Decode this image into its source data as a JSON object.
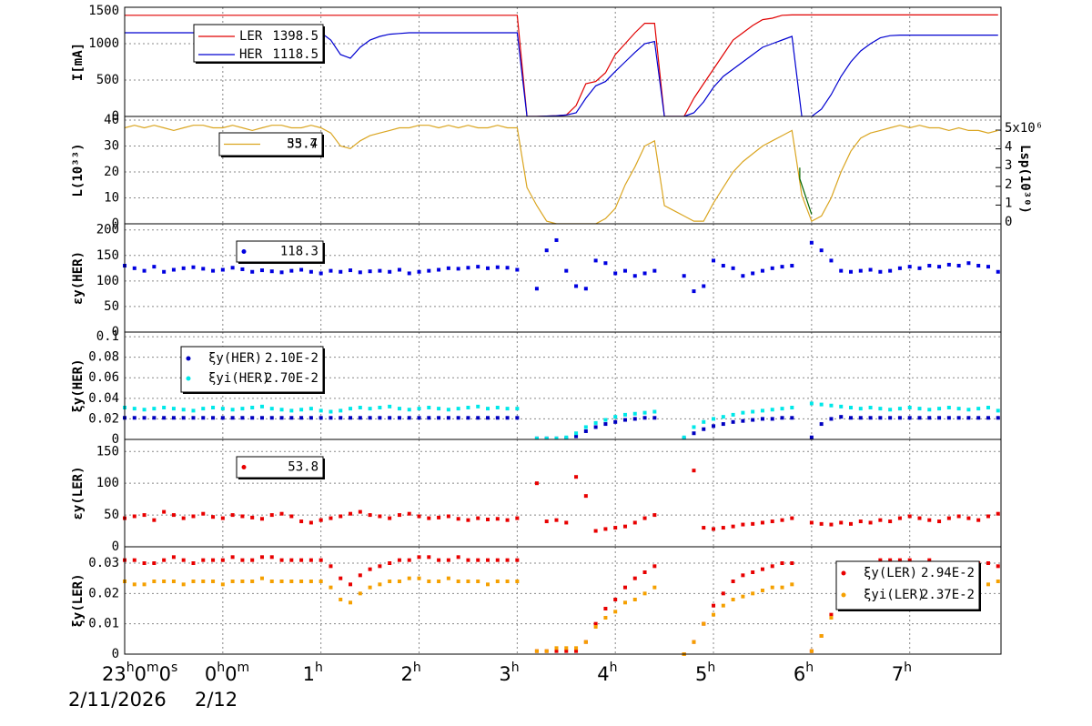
{
  "x_axis": {
    "xlim": [
      -1,
      7.93
    ],
    "xticks": [
      {
        "value": -1,
        "label": "23h0m0s"
      },
      {
        "value": 0,
        "label": "0h0m"
      },
      {
        "value": 1,
        "label": "1h"
      },
      {
        "value": 2,
        "label": "2h"
      },
      {
        "value": 3,
        "label": "3h"
      },
      {
        "value": 4,
        "label": "4h"
      },
      {
        "value": 5,
        "label": "5h"
      },
      {
        "value": 6,
        "label": "6h"
      },
      {
        "value": 7,
        "label": "7h"
      }
    ],
    "dates": [
      "2/11/2026",
      "2/12"
    ],
    "x": [
      -1,
      -0.9,
      -0.8,
      -0.7,
      -0.6,
      -0.5,
      -0.4,
      -0.3,
      -0.2,
      -0.1,
      0,
      0.1,
      0.2,
      0.3,
      0.4,
      0.5,
      0.6,
      0.7,
      0.8,
      0.9,
      1,
      1.1,
      1.2,
      1.3,
      1.4,
      1.5,
      1.6,
      1.7,
      1.8,
      1.9,
      2,
      2.1,
      2.2,
      2.3,
      2.4,
      2.5,
      2.6,
      2.7,
      2.8,
      2.9,
      3,
      3.1,
      3.2,
      3.3,
      3.4,
      3.5,
      3.6,
      3.7,
      3.8,
      3.9,
      4,
      4.1,
      4.2,
      4.3,
      4.4,
      4.5,
      4.6,
      4.7,
      4.8,
      4.9,
      5,
      5.1,
      5.2,
      5.3,
      5.4,
      5.5,
      5.6,
      5.7,
      5.8,
      5.9,
      6,
      6.1,
      6.2,
      6.3,
      6.4,
      6.5,
      6.6,
      6.7,
      6.8,
      6.9,
      7,
      7.1,
      7.2,
      7.3,
      7.4,
      7.5,
      7.6,
      7.7,
      7.8,
      7.9
    ]
  },
  "chart_data": [
    {
      "type": "line",
      "ylabel": "I[mA]",
      "ylim": [
        0,
        1500
      ],
      "yticks": [
        0,
        500,
        1000,
        1500
      ],
      "grid": true,
      "series": [
        {
          "name": "LER",
          "color": "#e00000",
          "legend_value": 1398.5,
          "values": [
            1390,
            1390,
            1390,
            1390,
            1390,
            1390,
            1390,
            1390,
            1390,
            1390,
            1390,
            1390,
            1390,
            1390,
            1390,
            1390,
            1390,
            1390,
            1390,
            1390,
            1390,
            1390,
            1390,
            1390,
            1390,
            1390,
            1390,
            1390,
            1390,
            1390,
            1390,
            1390,
            1390,
            1390,
            1390,
            1390,
            1390,
            1390,
            1390,
            1390,
            1390,
            0,
            0,
            5,
            10,
            20,
            150,
            450,
            480,
            600,
            850,
            1000,
            1150,
            1280,
            1280,
            0,
            0,
            0,
            250,
            450,
            650,
            850,
            1050,
            1150,
            1250,
            1330,
            1350,
            1390,
            1395,
            1395,
            1395,
            1395,
            1395,
            1395,
            1395,
            1395,
            1395,
            1395,
            1395,
            1395,
            1395,
            1395,
            1395,
            1395,
            1395,
            1395,
            1395,
            1395,
            1395,
            1395
          ]
        },
        {
          "name": "HER",
          "color": "#0000d0",
          "legend_value": 1118.5,
          "values": [
            1150,
            1150,
            1150,
            1150,
            1150,
            1150,
            1150,
            1150,
            1150,
            1150,
            1150,
            1150,
            1150,
            1150,
            1150,
            1150,
            1150,
            1150,
            1150,
            1150,
            1150,
            1050,
            850,
            800,
            950,
            1050,
            1100,
            1130,
            1140,
            1150,
            1150,
            1150,
            1150,
            1150,
            1150,
            1150,
            1150,
            1150,
            1150,
            1150,
            1150,
            0,
            0,
            5,
            10,
            20,
            50,
            250,
            420,
            480,
            620,
            750,
            880,
            1000,
            1030,
            0,
            0,
            0,
            50,
            200,
            400,
            550,
            650,
            750,
            850,
            950,
            1000,
            1050,
            1100,
            0,
            0,
            100,
            300,
            550,
            750,
            900,
            1000,
            1080,
            1110,
            1118,
            1118,
            1118,
            1118,
            1118,
            1118,
            1118,
            1118,
            1118,
            1118,
            1118,
            1118
          ]
        }
      ]
    },
    {
      "type": "line",
      "ylabel": "L(10³³)",
      "y2label": "Lsp(10³⁰)",
      "ylim": [
        0,
        41.4
      ],
      "yticks": [
        0,
        10,
        20,
        30,
        40
      ],
      "y2lim": [
        0,
        5730000
      ],
      "y2ticks": [
        0,
        {
          "value": 1000000,
          "label": "1"
        },
        {
          "value": 2000000,
          "label": "2"
        },
        {
          "value": 3000000,
          "label": "3"
        },
        {
          "value": 4000000,
          "label": "4"
        },
        {
          "value": 5000000,
          "label": "5x10⁶"
        }
      ],
      "grid": true,
      "series": [
        {
          "color": "#daa520",
          "legend_value": 33.4,
          "values": [
            37,
            38,
            37,
            38,
            37,
            36,
            37,
            38,
            38,
            37,
            37,
            38,
            37,
            36,
            37,
            38,
            38,
            37,
            37,
            38,
            37,
            35,
            30,
            29,
            32,
            34,
            35,
            36,
            37,
            37,
            38,
            38,
            37,
            38,
            37,
            38,
            37,
            37,
            38,
            37,
            37,
            14,
            7,
            1,
            0,
            0,
            0,
            0,
            0,
            2,
            6,
            15,
            22,
            30,
            32,
            7,
            5,
            3,
            1,
            1,
            8,
            14,
            20,
            24,
            27,
            30,
            32,
            34,
            36,
            11,
            1,
            3,
            10,
            20,
            28,
            33,
            35,
            36,
            37,
            38,
            37,
            38,
            37,
            37,
            36,
            37,
            36,
            36,
            35,
            36
          ]
        },
        {
          "color": "#006600",
          "axis": "y2",
          "legend_value": 55.7,
          "x": [
            5.88,
            5.88,
            6.0
          ],
          "values": [
            3000000,
            2400000,
            500000
          ]
        }
      ]
    },
    {
      "type": "scatter",
      "ylabel": "εy(HER)",
      "ylim": [
        0,
        212
      ],
      "yticks": [
        0,
        50,
        100,
        150,
        200
      ],
      "grid": true,
      "series": [
        {
          "color": "#0000e0",
          "legend_value": 118.3,
          "values": [
            130,
            125,
            120,
            128,
            118,
            122,
            125,
            127,
            124,
            120,
            122,
            126,
            123,
            118,
            121,
            119,
            117,
            120,
            122,
            118,
            115,
            120,
            118,
            121,
            117,
            119,
            120,
            118,
            122,
            115,
            118,
            120,
            122,
            125,
            124,
            126,
            128,
            125,
            127,
            126,
            122,
            null,
            85,
            160,
            180,
            120,
            90,
            85,
            140,
            135,
            115,
            120,
            110,
            115,
            120,
            null,
            null,
            110,
            80,
            90,
            140,
            130,
            125,
            110,
            115,
            120,
            125,
            128,
            130,
            null,
            175,
            160,
            140,
            120,
            118,
            120,
            122,
            118,
            120,
            125,
            128,
            125,
            130,
            128,
            132,
            130,
            135,
            130,
            128,
            118
          ]
        }
      ]
    },
    {
      "type": "scatter",
      "ylabel": "ξy(HER)",
      "ylim": [
        0,
        0.1045
      ],
      "yticks": [
        0,
        0.02,
        0.04,
        0.06,
        0.08,
        0.1
      ],
      "grid": true,
      "series": [
        {
          "name": "ξy(HER)",
          "color": "#0000c0",
          "legend_value": "2.10E-2",
          "values": [
            0.021,
            0.021,
            0.021,
            0.021,
            0.021,
            0.021,
            0.021,
            0.021,
            0.021,
            0.021,
            0.021,
            0.021,
            0.021,
            0.021,
            0.021,
            0.021,
            0.021,
            0.021,
            0.021,
            0.021,
            0.021,
            0.021,
            0.021,
            0.021,
            0.021,
            0.021,
            0.021,
            0.021,
            0.021,
            0.021,
            0.021,
            0.021,
            0.021,
            0.021,
            0.021,
            0.021,
            0.021,
            0.021,
            0.021,
            0.021,
            0.021,
            null,
            0.001,
            0.001,
            0.001,
            0.001,
            0.003,
            0.008,
            0.012,
            0.015,
            0.017,
            0.019,
            0.02,
            0.021,
            0.021,
            null,
            null,
            0.001,
            0.006,
            0.01,
            0.013,
            0.015,
            0.017,
            0.018,
            0.019,
            0.02,
            0.02,
            0.021,
            0.021,
            null,
            0.002,
            0.015,
            0.02,
            0.022,
            0.021,
            0.021,
            0.021,
            0.021,
            0.021,
            0.021,
            0.021,
            0.021,
            0.021,
            0.021,
            0.021,
            0.021,
            0.021,
            0.021,
            0.021,
            0.021
          ]
        },
        {
          "name": "ξyi(HER)",
          "color": "#00e8e8",
          "legend_value": "2.70E-2",
          "values": [
            0.031,
            0.03,
            0.029,
            0.03,
            0.031,
            0.03,
            0.029,
            0.028,
            0.03,
            0.031,
            0.03,
            0.029,
            0.03,
            0.031,
            0.032,
            0.03,
            0.029,
            0.028,
            0.029,
            0.03,
            0.028,
            0.027,
            0.028,
            0.03,
            0.031,
            0.03,
            0.031,
            0.032,
            0.03,
            0.029,
            0.03,
            0.031,
            0.03,
            0.029,
            0.03,
            0.031,
            0.032,
            0.03,
            0.031,
            0.03,
            0.03,
            null,
            0.001,
            0.001,
            0.001,
            0.002,
            0.006,
            0.012,
            0.016,
            0.019,
            0.022,
            0.024,
            0.025,
            0.026,
            0.027,
            null,
            null,
            0.002,
            0.012,
            0.017,
            0.02,
            0.022,
            0.024,
            0.026,
            0.027,
            0.028,
            0.029,
            0.03,
            0.031,
            null,
            0.035,
            0.034,
            0.033,
            0.032,
            0.031,
            0.03,
            0.031,
            0.03,
            0.029,
            0.03,
            0.031,
            0.03,
            0.029,
            0.03,
            0.031,
            0.03,
            0.029,
            0.03,
            0.031,
            0.028
          ]
        }
      ]
    },
    {
      "type": "scatter",
      "ylabel": "εy(LER)",
      "ylim": [
        0,
        169
      ],
      "yticks": [
        0,
        50,
        100,
        150
      ],
      "grid": true,
      "series": [
        {
          "color": "#e80000",
          "legend_value": 53.8,
          "values": [
            45,
            48,
            50,
            42,
            55,
            50,
            45,
            48,
            52,
            47,
            45,
            50,
            48,
            46,
            44,
            50,
            52,
            48,
            40,
            38,
            42,
            45,
            48,
            52,
            55,
            50,
            48,
            45,
            50,
            52,
            48,
            45,
            46,
            48,
            44,
            42,
            45,
            43,
            44,
            42,
            45,
            null,
            100,
            40,
            42,
            38,
            110,
            80,
            25,
            28,
            30,
            32,
            38,
            45,
            50,
            null,
            null,
            null,
            120,
            30,
            28,
            30,
            32,
            35,
            36,
            38,
            40,
            42,
            45,
            null,
            38,
            36,
            35,
            38,
            36,
            40,
            38,
            42,
            40,
            45,
            48,
            45,
            42,
            40,
            45,
            48,
            45,
            42,
            48,
            52
          ]
        }
      ]
    },
    {
      "type": "scatter",
      "ylabel": "ξy(LER)",
      "ylim": [
        0,
        0.0354
      ],
      "yticks": [
        0,
        0.01,
        0.02,
        0.03
      ],
      "grid": true,
      "series": [
        {
          "name": "ξy(LER)",
          "color": "#e80000",
          "legend_value": "2.94E-2",
          "values": [
            0.031,
            0.031,
            0.03,
            0.03,
            0.031,
            0.032,
            0.031,
            0.03,
            0.031,
            0.031,
            0.031,
            0.032,
            0.031,
            0.031,
            0.032,
            0.032,
            0.031,
            0.031,
            0.031,
            0.031,
            0.031,
            0.029,
            0.025,
            0.023,
            0.026,
            0.028,
            0.029,
            0.03,
            0.031,
            0.031,
            0.032,
            0.032,
            0.031,
            0.031,
            0.032,
            0.031,
            0.031,
            0.031,
            0.031,
            0.031,
            0.031,
            null,
            0.001,
            0.001,
            0.001,
            0.001,
            0.001,
            0.004,
            0.01,
            0.015,
            0.018,
            0.022,
            0.025,
            0.027,
            0.029,
            null,
            null,
            0,
            0.004,
            0.01,
            0.016,
            0.02,
            0.024,
            0.026,
            0.027,
            0.028,
            0.029,
            0.03,
            0.03,
            null,
            0.001,
            0.006,
            0.013,
            0.02,
            0.025,
            0.028,
            0.03,
            0.031,
            0.031,
            0.031,
            0.031,
            0.03,
            0.031,
            0.03,
            0.03,
            0.03,
            0.03,
            0.03,
            0.03,
            0.029
          ]
        },
        {
          "name": "ξyi(LER)",
          "color": "#f5a000",
          "legend_value": "2.37E-2",
          "values": [
            0.024,
            0.023,
            0.023,
            0.024,
            0.024,
            0.024,
            0.023,
            0.024,
            0.024,
            0.024,
            0.023,
            0.024,
            0.024,
            0.024,
            0.025,
            0.024,
            0.024,
            0.024,
            0.024,
            0.024,
            0.024,
            0.022,
            0.018,
            0.017,
            0.02,
            0.022,
            0.023,
            0.024,
            0.024,
            0.025,
            0.025,
            0.024,
            0.024,
            0.025,
            0.024,
            0.024,
            0.024,
            0.023,
            0.024,
            0.024,
            0.024,
            null,
            0.001,
            0.001,
            0.002,
            0.002,
            0.002,
            0.004,
            0.009,
            0.012,
            0.014,
            0.017,
            0.018,
            0.02,
            0.022,
            null,
            null,
            0,
            0.004,
            0.01,
            0.013,
            0.016,
            0.018,
            0.019,
            0.02,
            0.021,
            0.022,
            0.022,
            0.023,
            null,
            0.001,
            0.006,
            0.012,
            0.017,
            0.02,
            0.021,
            0.022,
            0.022,
            0.023,
            0.023,
            0.023,
            0.023,
            0.023,
            0.024,
            0.023,
            0.024,
            0.023,
            0.023,
            0.023,
            0.024
          ]
        }
      ]
    }
  ]
}
